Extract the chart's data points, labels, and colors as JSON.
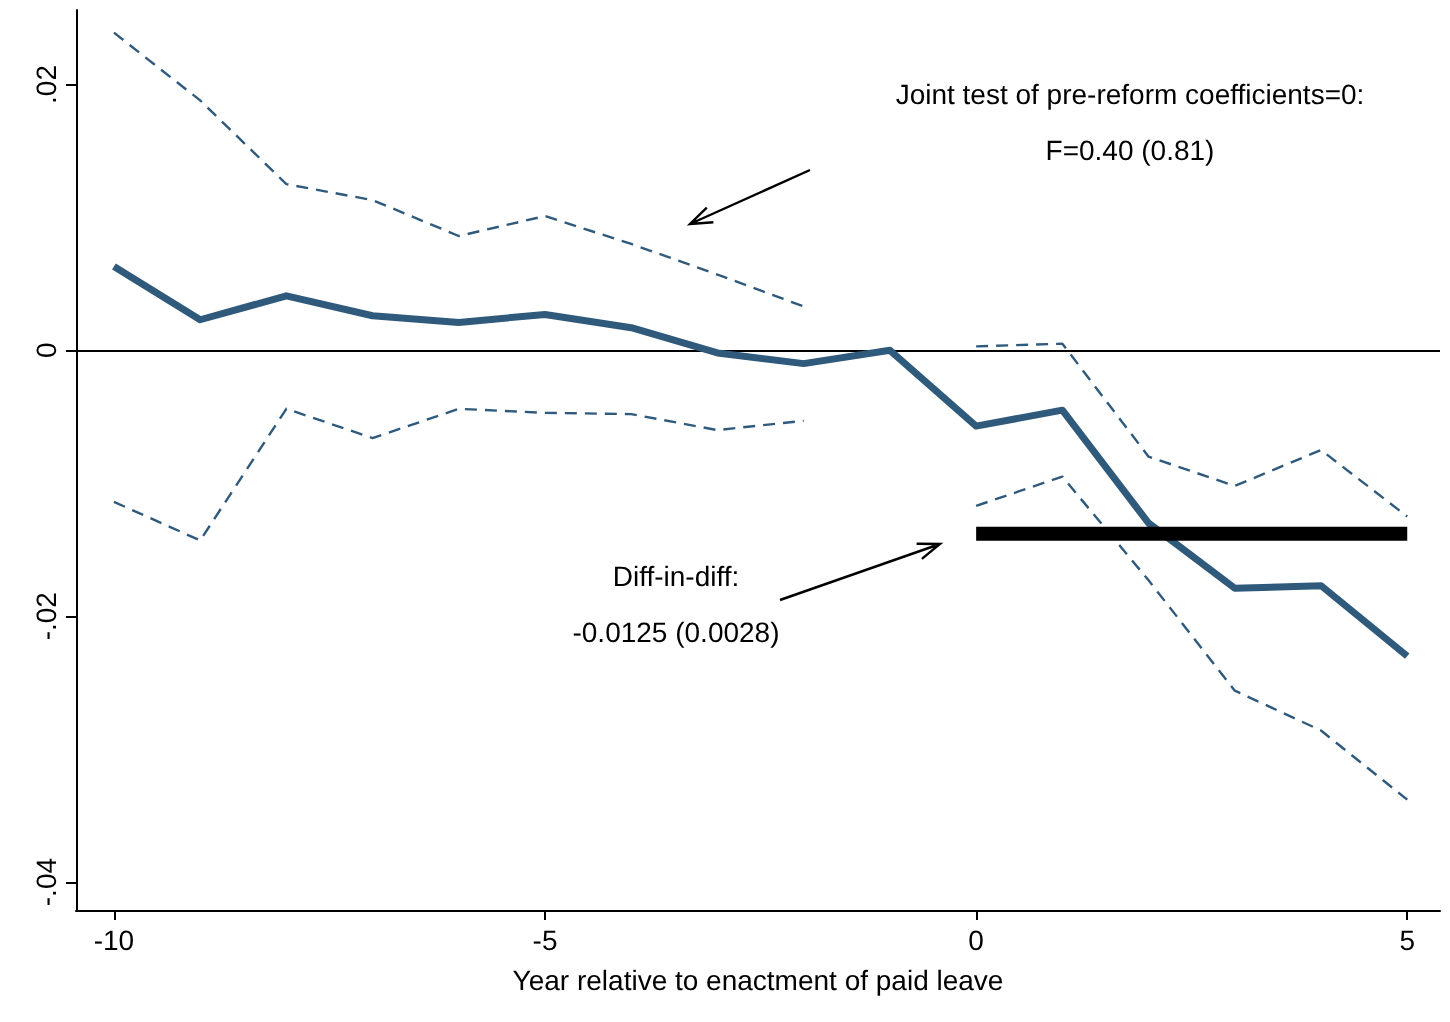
{
  "chart_data": {
    "type": "line",
    "xlabel": "Year relative to enactment of paid leave",
    "x": [
      -10,
      -9,
      -8,
      -7,
      -6,
      -5,
      -4,
      -3,
      -2,
      -1,
      0,
      1,
      2,
      3,
      4,
      5
    ],
    "series": [
      {
        "color": "#2f5a7c",
        "values": [
          0.0063,
          0.0023,
          0.0041,
          0.0026,
          0.0021,
          0.0027,
          0.0017,
          -0.0002,
          -0.001,
          0,
          -0.0057,
          -0.0045,
          -0.013,
          -0.0179,
          -0.0177,
          -0.023
        ]
      },
      {
        "color": "#2f5a7c",
        "line_style": "dashed",
        "values": [
          0.0239,
          0.0188,
          0.0125,
          0.0113,
          0.0086,
          0.0101,
          0.008,
          0.0057,
          0.0033,
          null,
          0.0003,
          0.0005,
          -0.008,
          -0.0102,
          -0.0075,
          -0.0125
        ]
      },
      {
        "color": "#2f5a7c",
        "line_style": "dashed",
        "values": [
          -0.0114,
          -0.0143,
          -0.0044,
          -0.0066,
          -0.0044,
          -0.0047,
          -0.0048,
          -0.006,
          -0.0053,
          null,
          -0.0117,
          -0.0095,
          -0.0173,
          -0.0256,
          -0.0286,
          -0.0338
        ]
      },
      {
        "color": "#000000",
        "x": [
          0,
          5
        ],
        "values": [
          -0.0138,
          -0.0138
        ]
      }
    ],
    "xlim": [
      -10.44,
      5.38
    ],
    "xticks": [
      -10,
      -5,
      0,
      5
    ],
    "ylim": [
      -0.0421,
      0.0256
    ],
    "yticks": [
      {
        "value": -0.04,
        "label": "-.04"
      },
      {
        "value": -0.02,
        "label": "-.02"
      },
      {
        "value": 0,
        "label": "0"
      },
      {
        "value": 0.02,
        "label": ".02"
      }
    ],
    "ref_lines": [
      {
        "axis": "y",
        "value": 0,
        "color": "#000000"
      }
    ],
    "annotations": [
      "Joint test of pre-reform coefficients=0:\nF=0.40 (0.81)",
      "Diff-in-diff:\n-0.0125 (0.0028)"
    ],
    "grid": false,
    "marker": "none",
    "line_style": "solid"
  }
}
